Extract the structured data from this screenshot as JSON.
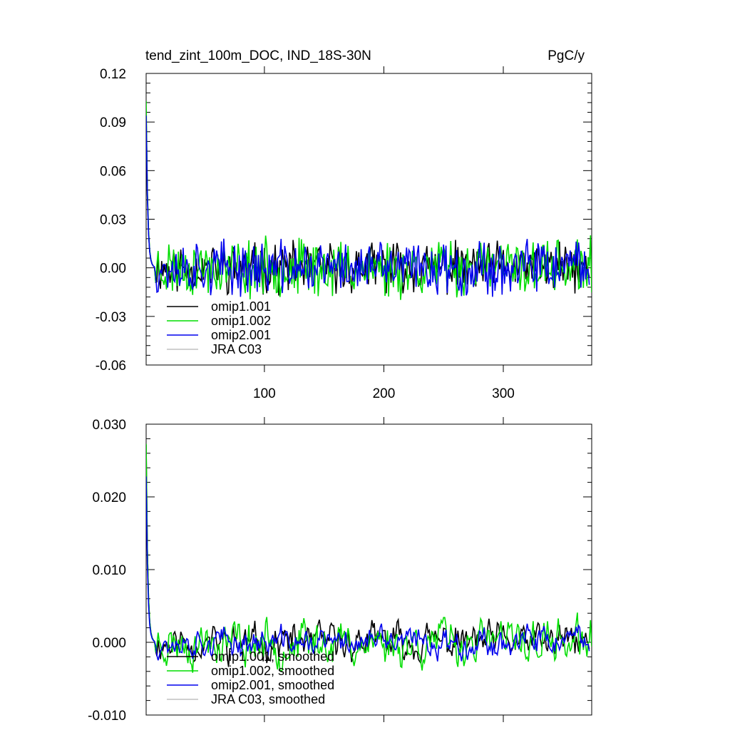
{
  "header": {
    "title": "tend_zint_100m_DOC, IND_18S-30N",
    "units": "PgC/y"
  },
  "chart_data": [
    {
      "type": "line",
      "xlim": [
        1,
        374
      ],
      "ylim": [
        -0.06,
        0.12
      ],
      "yticks": [
        -0.06,
        -0.03,
        0.0,
        0.03,
        0.06,
        0.09,
        0.12
      ],
      "ytick_labels": [
        "-0.06",
        "-0.03",
        "0.00",
        "0.03",
        "0.06",
        "0.09",
        "0.12"
      ],
      "xticks": [
        100,
        200,
        300
      ],
      "xtick_labels": [
        "100",
        "200",
        "300"
      ],
      "legend_position": "bottom-left",
      "series": [
        {
          "name": "omip1.001",
          "color": "#000000",
          "seed": 11,
          "peak": 0.096,
          "amp": 0.012,
          "xmax": 372
        },
        {
          "name": "omip1.002",
          "color": "#00dd00",
          "seed": 23,
          "peak": 0.103,
          "amp": 0.014,
          "xmax": 374
        },
        {
          "name": "omip2.001",
          "color": "#0000ee",
          "seed": 37,
          "peak": 0.094,
          "amp": 0.013,
          "xmax": 372
        },
        {
          "name": "JRA C03",
          "color": "#c0c0c0",
          "seed": 0,
          "peak": 0,
          "amp": 0,
          "xmax": 0
        }
      ]
    },
    {
      "type": "line",
      "xlim": [
        1,
        374
      ],
      "ylim": [
        -0.01,
        0.03
      ],
      "yticks": [
        -0.01,
        0.0,
        0.01,
        0.02,
        0.03
      ],
      "ytick_labels": [
        "-0.010",
        "0.000",
        "0.010",
        "0.020",
        "0.030"
      ],
      "xticks": [
        100,
        200,
        300
      ],
      "xtick_labels": [
        "",
        "",
        ""
      ],
      "legend_position": "bottom-left",
      "series": [
        {
          "name": "omip1.001, smoothed",
          "color": "#000000",
          "seed": 11,
          "peak": 0.0272,
          "amp": 0.0028,
          "xmax": 372
        },
        {
          "name": "omip1.002, smoothed",
          "color": "#00dd00",
          "seed": 23,
          "peak": 0.0273,
          "amp": 0.0035,
          "xmax": 374
        },
        {
          "name": "omip2.001, smoothed",
          "color": "#0000ee",
          "seed": 37,
          "peak": 0.0228,
          "amp": 0.0022,
          "xmax": 372
        },
        {
          "name": "JRA C03, smoothed",
          "color": "#c0c0c0",
          "seed": 0,
          "peak": 0,
          "amp": 0,
          "xmax": 0
        }
      ]
    }
  ]
}
